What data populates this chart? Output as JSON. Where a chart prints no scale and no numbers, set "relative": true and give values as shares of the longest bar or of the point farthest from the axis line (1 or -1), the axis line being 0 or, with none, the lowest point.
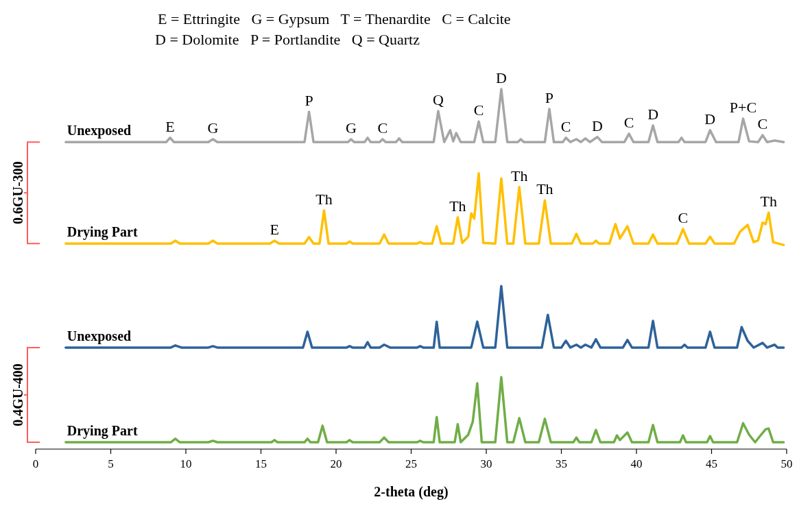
{
  "chart_data": {
    "type": "line",
    "relative": true,
    "xlabel": "2-theta (deg)",
    "xlim": [
      0,
      50
    ],
    "xticks": [
      0,
      5,
      10,
      15,
      20,
      25,
      30,
      35,
      40,
      45,
      50
    ],
    "grid": false,
    "marker": "none",
    "line_style": "solid",
    "series": [
      {
        "name": "Unexposed",
        "color": "#a6a6a6",
        "x": [
          2,
          8.7,
          8.95,
          9.2,
          11.5,
          11.8,
          12.1,
          17.9,
          18.2,
          18.5,
          20.8,
          21.0,
          21.2,
          21.9,
          22.1,
          22.3,
          22.9,
          23.1,
          23.3,
          24.0,
          24.2,
          24.4,
          26.5,
          26.8,
          27.2,
          27.6,
          27.8,
          28.0,
          28.3,
          29.2,
          29.5,
          29.8,
          30.6,
          31.0,
          31.4,
          32.1,
          32.3,
          32.5,
          33.9,
          34.2,
          34.5,
          35.1,
          35.3,
          35.6,
          36.0,
          36.3,
          36.6,
          36.9,
          37.4,
          37.7,
          39.2,
          39.5,
          39.8,
          40.8,
          41.1,
          41.4,
          42.8,
          43.0,
          43.2,
          44.6,
          44.9,
          45.3,
          46.8,
          47.1,
          47.5,
          48.1,
          48.4,
          48.7,
          49.2,
          49.8
        ],
        "values": [
          0.853,
          0.853,
          0.865,
          0.853,
          0.853,
          0.861,
          0.853,
          0.853,
          0.937,
          0.853,
          0.853,
          0.861,
          0.853,
          0.853,
          0.865,
          0.853,
          0.853,
          0.861,
          0.853,
          0.853,
          0.863,
          0.853,
          0.853,
          0.939,
          0.853,
          0.886,
          0.855,
          0.878,
          0.853,
          0.853,
          0.91,
          0.853,
          0.853,
          1,
          0.853,
          0.853,
          0.861,
          0.853,
          0.853,
          0.945,
          0.853,
          0.853,
          0.865,
          0.853,
          0.861,
          0.853,
          0.863,
          0.853,
          0.867,
          0.853,
          0.853,
          0.876,
          0.853,
          0.853,
          0.899,
          0.853,
          0.853,
          0.865,
          0.853,
          0.853,
          0.886,
          0.853,
          0.853,
          0.918,
          0.855,
          0.853,
          0.872,
          0.853,
          0.857,
          0.853
        ]
      },
      {
        "name": "Drying Part",
        "color": "#ffc000",
        "x": [
          2,
          9.0,
          9.3,
          9.6,
          11.5,
          11.8,
          12.1,
          15.6,
          15.9,
          16.2,
          17.9,
          18.2,
          18.5,
          18.9,
          19.2,
          19.5,
          20.7,
          20.9,
          21.1,
          22.9,
          23.2,
          23.5,
          25.4,
          25.6,
          25.8,
          26.4,
          26.7,
          27.0,
          27.8,
          28.1,
          28.4,
          28.8,
          29.0,
          29.2,
          29.5,
          29.8,
          30.6,
          31.0,
          31.4,
          31.8,
          32.2,
          32.6,
          33.5,
          33.9,
          34.3,
          35.7,
          36.0,
          36.3,
          37.1,
          37.3,
          37.5,
          38.2,
          38.6,
          38.9,
          39.4,
          39.8,
          40.8,
          41.1,
          41.4,
          42.7,
          43.1,
          43.5,
          44.6,
          44.9,
          45.2,
          46.5,
          46.9,
          47.4,
          47.8,
          48.1,
          48.4,
          48.6,
          48.8,
          49.1,
          49.8
        ],
        "values": [
          0.571,
          0.571,
          0.579,
          0.571,
          0.571,
          0.579,
          0.571,
          0.571,
          0.579,
          0.571,
          0.571,
          0.589,
          0.571,
          0.571,
          0.663,
          0.571,
          0.571,
          0.577,
          0.571,
          0.571,
          0.596,
          0.571,
          0.571,
          0.575,
          0.571,
          0.571,
          0.619,
          0.571,
          0.571,
          0.644,
          0.573,
          0.59,
          0.655,
          0.64,
          0.766,
          0.573,
          0.571,
          0.752,
          0.571,
          0.571,
          0.728,
          0.571,
          0.571,
          0.691,
          0.571,
          0.571,
          0.598,
          0.571,
          0.571,
          0.579,
          0.571,
          0.571,
          0.625,
          0.585,
          0.619,
          0.571,
          0.571,
          0.596,
          0.571,
          0.571,
          0.611,
          0.571,
          0.571,
          0.59,
          0.571,
          0.571,
          0.604,
          0.623,
          0.575,
          0.58,
          0.629,
          0.625,
          0.657,
          0.575,
          0.567
        ]
      },
      {
        "name": "Unexposed",
        "color": "#2e6299",
        "x": [
          2,
          9.0,
          9.3,
          9.7,
          11.5,
          11.8,
          12.1,
          17.8,
          18.1,
          18.4,
          20.7,
          20.9,
          21.1,
          21.9,
          22.1,
          22.3,
          22.9,
          23.2,
          23.6,
          25.4,
          25.6,
          25.8,
          26.5,
          26.7,
          26.9,
          29.0,
          29.4,
          29.8,
          30.6,
          31.0,
          31.4,
          33.7,
          34.1,
          34.5,
          35.0,
          35.3,
          35.6,
          36.0,
          36.3,
          36.6,
          37.0,
          37.3,
          37.6,
          39.1,
          39.4,
          39.7,
          40.8,
          41.1,
          41.4,
          43.0,
          43.2,
          43.4,
          44.6,
          44.9,
          45.2,
          46.7,
          47.0,
          47.4,
          47.8,
          48.4,
          48.7,
          49.2,
          49.4,
          49.8
        ],
        "values": [
          0.282,
          0.282,
          0.288,
          0.282,
          0.282,
          0.286,
          0.282,
          0.282,
          0.326,
          0.282,
          0.282,
          0.286,
          0.282,
          0.282,
          0.297,
          0.282,
          0.282,
          0.29,
          0.282,
          0.282,
          0.286,
          0.282,
          0.282,
          0.354,
          0.282,
          0.282,
          0.354,
          0.282,
          0.282,
          0.453,
          0.282,
          0.282,
          0.373,
          0.282,
          0.282,
          0.301,
          0.282,
          0.29,
          0.282,
          0.29,
          0.282,
          0.305,
          0.282,
          0.282,
          0.303,
          0.282,
          0.282,
          0.356,
          0.282,
          0.282,
          0.29,
          0.282,
          0.282,
          0.326,
          0.282,
          0.282,
          0.339,
          0.301,
          0.282,
          0.295,
          0.282,
          0.29,
          0.282,
          0.282
        ]
      },
      {
        "name": "Drying Part",
        "color": "#70ad47",
        "x": [
          2,
          9.0,
          9.3,
          9.6,
          11.5,
          11.8,
          12.1,
          15.7,
          15.9,
          16.1,
          17.9,
          18.1,
          18.3,
          18.8,
          19.1,
          19.4,
          20.7,
          20.9,
          21.1,
          22.9,
          23.2,
          23.5,
          25.4,
          25.6,
          25.8,
          26.5,
          26.7,
          26.9,
          27.9,
          28.1,
          28.3,
          28.8,
          29.1,
          29.4,
          29.7,
          30.6,
          31.0,
          31.4,
          31.8,
          32.2,
          32.6,
          33.5,
          33.9,
          34.3,
          35.8,
          36.0,
          36.2,
          37.0,
          37.3,
          37.6,
          38.5,
          38.7,
          38.9,
          39.4,
          39.7,
          40.8,
          41.1,
          41.4,
          42.9,
          43.1,
          43.3,
          44.7,
          44.9,
          45.1,
          46.7,
          47.1,
          47.5,
          47.9,
          48.3,
          48.6,
          48.8,
          49.1,
          49.8
        ],
        "values": [
          0.019,
          0.019,
          0.029,
          0.019,
          0.019,
          0.023,
          0.019,
          0.019,
          0.025,
          0.019,
          0.019,
          0.029,
          0.019,
          0.019,
          0.065,
          0.019,
          0.019,
          0.025,
          0.019,
          0.019,
          0.032,
          0.019,
          0.019,
          0.023,
          0.019,
          0.019,
          0.089,
          0.019,
          0.019,
          0.069,
          0.019,
          0.04,
          0.076,
          0.183,
          0.019,
          0.019,
          0.2,
          0.019,
          0.019,
          0.086,
          0.019,
          0.019,
          0.084,
          0.019,
          0.019,
          0.032,
          0.019,
          0.019,
          0.053,
          0.019,
          0.019,
          0.038,
          0.025,
          0.046,
          0.019,
          0.019,
          0.067,
          0.019,
          0.019,
          0.038,
          0.019,
          0.019,
          0.036,
          0.019,
          0.019,
          0.072,
          0.04,
          0.019,
          0.04,
          0.055,
          0.057,
          0.019,
          0.019
        ]
      }
    ],
    "annotations": [
      "E = Ettringite   G = Gypsum   T = Thenardite   C = Calcite",
      "D = Dolomite   P = Portlandite   Q = Quartz",
      "0.6GU-300",
      "0.4GU-400",
      {
        "text": "E",
        "x": 8.95,
        "y": 0.865
      },
      {
        "text": "G",
        "x": 11.8,
        "y": 0.861
      },
      {
        "text": "P",
        "x": 18.2,
        "y": 0.937
      },
      {
        "text": "G",
        "x": 21.0,
        "y": 0.861
      },
      {
        "text": "C",
        "x": 23.1,
        "y": 0.861
      },
      {
        "text": "Q",
        "x": 26.8,
        "y": 0.939
      },
      {
        "text": "C",
        "x": 29.5,
        "y": 0.91
      },
      {
        "text": "D",
        "x": 31.0,
        "y": 1
      },
      {
        "text": "P",
        "x": 34.2,
        "y": 0.945
      },
      {
        "text": "C",
        "x": 35.3,
        "y": 0.865
      },
      {
        "text": "D",
        "x": 37.4,
        "y": 0.867
      },
      {
        "text": "C",
        "x": 39.5,
        "y": 0.876
      },
      {
        "text": "D",
        "x": 41.1,
        "y": 0.899
      },
      {
        "text": "D",
        "x": 44.9,
        "y": 0.886
      },
      {
        "text": "P+C",
        "x": 47.1,
        "y": 0.918
      },
      {
        "text": "C",
        "x": 48.4,
        "y": 0.872
      },
      {
        "text": "E",
        "x": 15.9,
        "y": 0.579
      },
      {
        "text": "Th",
        "x": 19.2,
        "y": 0.663
      },
      {
        "text": "Th",
        "x": 28.1,
        "y": 0.644
      },
      {
        "text": "Th",
        "x": 32.2,
        "y": 0.728
      },
      {
        "text": "Th",
        "x": 33.9,
        "y": 0.691
      },
      {
        "text": "C",
        "x": 43.1,
        "y": 0.611
      },
      {
        "text": "Th",
        "x": 48.8,
        "y": 0.657
      }
    ]
  }
}
